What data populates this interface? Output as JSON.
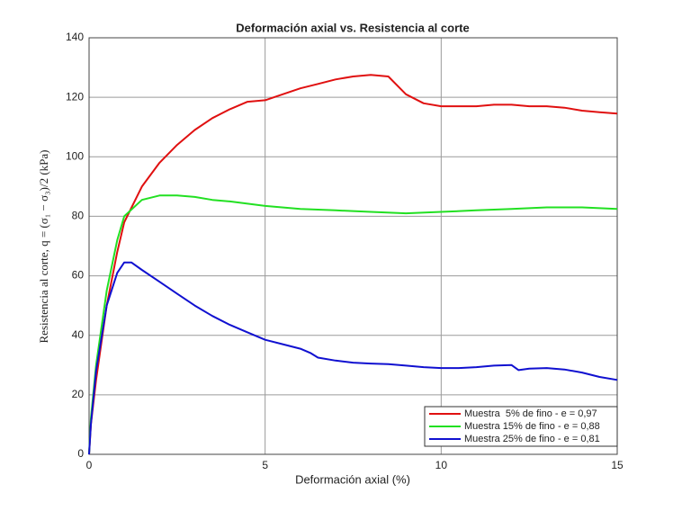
{
  "chart_data": {
    "type": "line",
    "title": "Deformación axial vs. Resistencia al corte",
    "x_label": "Deformación axial (%)",
    "y_label": "Resistencia al corte, q = (σ₁ − σ₃)/2 (kPa)",
    "xlim": [
      0,
      15
    ],
    "ylim": [
      0,
      140
    ],
    "xticks": [
      0,
      5,
      10,
      15
    ],
    "yticks": [
      0,
      20,
      40,
      60,
      80,
      100,
      120,
      140
    ],
    "grid": true,
    "legend": "lower right",
    "series": [
      {
        "name": "Muestra  5% de fino - e = 0,97",
        "color": "#e01010",
        "x": [
          0,
          0.05,
          0.2,
          0.5,
          0.8,
          1,
          1.5,
          2,
          2.5,
          3,
          3.5,
          4,
          4.5,
          5,
          5.5,
          6,
          6.5,
          7,
          7.5,
          8,
          8.5,
          9,
          9.5,
          10,
          10.5,
          11,
          11.5,
          12,
          12.5,
          13,
          13.5,
          14,
          14.5,
          15
        ],
        "values": [
          0,
          10,
          25,
          50,
          68,
          78,
          90,
          98,
          104,
          109,
          113,
          116,
          118.5,
          119,
          121,
          123,
          124.5,
          126,
          127,
          127.5,
          127,
          121,
          118,
          117,
          117,
          117,
          117.5,
          117.5,
          117,
          117,
          116.5,
          115.5,
          115,
          114.5
        ]
      },
      {
        "name": "Muestra 15% de fino - e = 0,88",
        "color": "#22e022",
        "x": [
          0,
          0.05,
          0.2,
          0.5,
          0.8,
          1,
          1.5,
          2,
          2.5,
          3,
          3.5,
          4,
          5,
          6,
          7,
          8,
          9,
          10,
          11,
          12,
          13,
          14,
          15
        ],
        "values": [
          0,
          12,
          30,
          55,
          72,
          80,
          85.5,
          87,
          87,
          86.5,
          85.5,
          85,
          83.5,
          82.5,
          82,
          81.5,
          81,
          81.5,
          82,
          82.5,
          83,
          83,
          82.5
        ]
      },
      {
        "name": "Muestra 25% de fino - e = 0,81",
        "color": "#1010d0",
        "x": [
          0,
          0.05,
          0.2,
          0.5,
          0.8,
          1,
          1.2,
          1.5,
          2,
          2.5,
          3,
          3.5,
          4,
          4.5,
          5,
          5.5,
          6,
          6.3,
          6.5,
          7,
          7.5,
          8,
          8.5,
          9,
          9.5,
          10,
          10.5,
          11,
          11.5,
          12,
          12.2,
          12.5,
          13,
          13.5,
          14,
          14.5,
          15
        ],
        "values": [
          0,
          10,
          28,
          50,
          61,
          64.5,
          64.5,
          62,
          58,
          54,
          50,
          46.5,
          43.5,
          41,
          38.5,
          37,
          35.5,
          34,
          32.5,
          31.5,
          30.8,
          30.5,
          30.3,
          29.8,
          29.3,
          29,
          29,
          29.3,
          29.8,
          30,
          28.3,
          28.8,
          29,
          28.5,
          27.5,
          26,
          25
        ]
      }
    ]
  }
}
